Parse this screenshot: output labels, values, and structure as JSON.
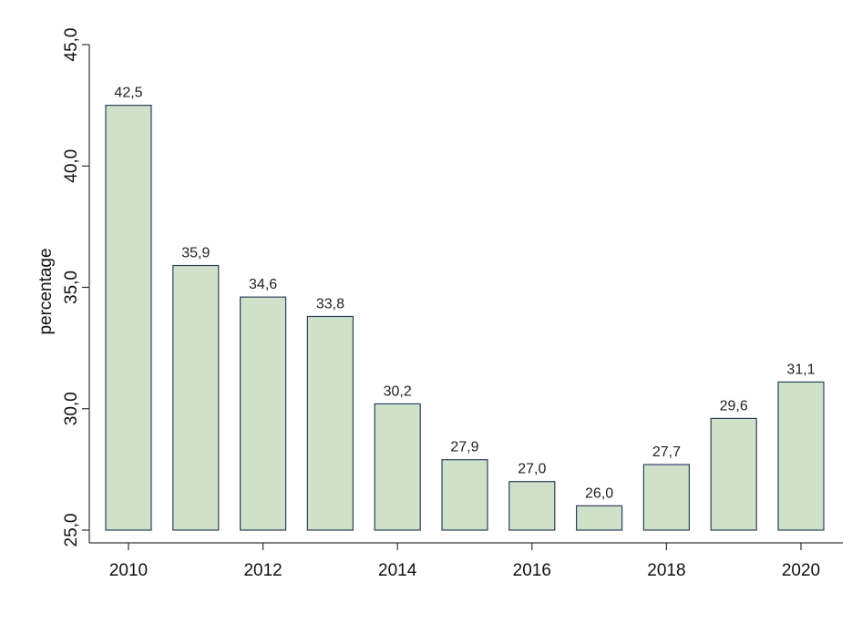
{
  "chart_data": {
    "type": "bar",
    "x": [
      2010,
      2011,
      2012,
      2013,
      2014,
      2015,
      2016,
      2017,
      2018,
      2019,
      2020
    ],
    "values": [
      42.5,
      35.9,
      34.6,
      33.8,
      30.2,
      27.9,
      27.0,
      26.0,
      27.7,
      29.6,
      31.1
    ],
    "value_labels": [
      "42,5",
      "35,9",
      "34,6",
      "33,8",
      "30,2",
      "27,9",
      "27,0",
      "26,0",
      "27,7",
      "29,6",
      "31,1"
    ],
    "bar_baseline": 25.0,
    "xticks": [
      "2010",
      "2012",
      "2014",
      "2016",
      "2018",
      "2020"
    ],
    "yticks": [
      "25,0",
      "30,0",
      "35,0",
      "40,0",
      "45,0"
    ],
    "ylim": [
      25.0,
      45.0
    ],
    "ylabel": "percentage",
    "xlabel": "",
    "title": "",
    "grid": false,
    "colors": {
      "bar_fill": "#cfe2c9",
      "bar_edge": "#2e3f5e"
    }
  }
}
